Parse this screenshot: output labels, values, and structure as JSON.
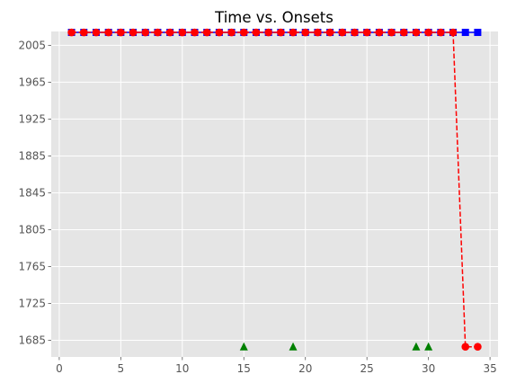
{
  "chart_data": {
    "type": "line",
    "title": "Time vs. Onsets",
    "xlabel": "",
    "ylabel": "",
    "xlim": [
      -0.65,
      35.65
    ],
    "ylim": [
      1667,
      2020
    ],
    "x_ticks": [
      0,
      5,
      10,
      15,
      20,
      25,
      30,
      35
    ],
    "y_ticks": [
      1685,
      1725,
      1765,
      1805,
      1845,
      1885,
      1925,
      1965,
      2005
    ],
    "grid": true,
    "legend": "none",
    "background": "#e5e5e5",
    "series": [
      {
        "marker": "square",
        "color": "#0000ff",
        "line_style": "solid",
        "x": [
          1,
          2,
          3,
          4,
          5,
          6,
          7,
          8,
          9,
          10,
          11,
          12,
          13,
          14,
          15,
          16,
          17,
          18,
          19,
          20,
          21,
          22,
          23,
          24,
          25,
          26,
          27,
          28,
          29,
          30,
          31,
          32,
          33,
          34
        ],
        "y": [
          2019,
          2019,
          2019,
          2019,
          2019,
          2019,
          2019,
          2019,
          2019,
          2019,
          2019,
          2019,
          2019,
          2019,
          2019,
          2019,
          2019,
          2019,
          2019,
          2019,
          2019,
          2019,
          2019,
          2019,
          2019,
          2019,
          2019,
          2019,
          2019,
          2019,
          2019,
          2019,
          2019,
          2019
        ]
      },
      {
        "marker": "circle",
        "color": "#ff0000",
        "line_style": "dashed",
        "x": [
          1,
          2,
          3,
          4,
          5,
          6,
          7,
          8,
          9,
          10,
          11,
          12,
          13,
          14,
          15,
          16,
          17,
          18,
          19,
          20,
          21,
          22,
          23,
          24,
          25,
          26,
          27,
          28,
          29,
          30,
          31,
          32,
          33,
          34
        ],
        "y": [
          2019,
          2019,
          2019,
          2019,
          2019,
          2019,
          2019,
          2019,
          2019,
          2019,
          2019,
          2019,
          2019,
          2019,
          2019,
          2019,
          2019,
          2019,
          2019,
          2019,
          2019,
          2019,
          2019,
          2019,
          2019,
          2019,
          2019,
          2019,
          2019,
          2019,
          2019,
          2019,
          1678,
          1678
        ]
      },
      {
        "marker": "triangle",
        "color": "#008000",
        "line_style": "none",
        "x": [
          15,
          19,
          29,
          30
        ],
        "y": [
          1678,
          1678,
          1678,
          1678
        ]
      }
    ]
  }
}
